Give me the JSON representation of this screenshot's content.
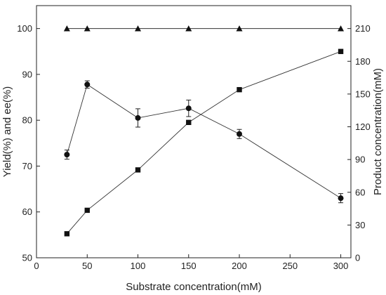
{
  "chart_data": {
    "type": "scatter",
    "title": "",
    "xlabel": "Substrate concentration(mM)",
    "ylabel_left": "Yield(%) and ee(%)",
    "ylabel_right": "Product concentration(mM)",
    "xlim": [
      0,
      310
    ],
    "ylim_left": [
      50,
      105
    ],
    "ylim_right": [
      0,
      231
    ],
    "x_ticks": [
      0,
      50,
      100,
      150,
      200,
      250,
      300
    ],
    "y_left_ticks": [
      50,
      60,
      70,
      80,
      90,
      100
    ],
    "y_right_ticks": [
      0,
      30,
      60,
      90,
      120,
      150,
      180,
      210
    ],
    "grid": false,
    "legend": "none",
    "series": [
      {
        "marker": "triangle",
        "axis": "left",
        "x": [
          30,
          50,
          100,
          150,
          200,
          300
        ],
        "y": [
          100,
          100,
          100,
          100,
          100,
          100
        ]
      },
      {
        "marker": "circle",
        "axis": "left",
        "x": [
          30,
          50,
          100,
          150,
          200,
          300
        ],
        "y": [
          72.5,
          87.8,
          80.5,
          82.6,
          77.0,
          63.0
        ],
        "error": [
          1.0,
          0.8,
          2.0,
          1.8,
          1.0,
          1.0
        ]
      },
      {
        "marker": "square",
        "axis": "right",
        "x": [
          30,
          50,
          100,
          150,
          200,
          300
        ],
        "y": [
          22,
          43.5,
          80.5,
          124,
          154,
          189
        ]
      }
    ]
  }
}
